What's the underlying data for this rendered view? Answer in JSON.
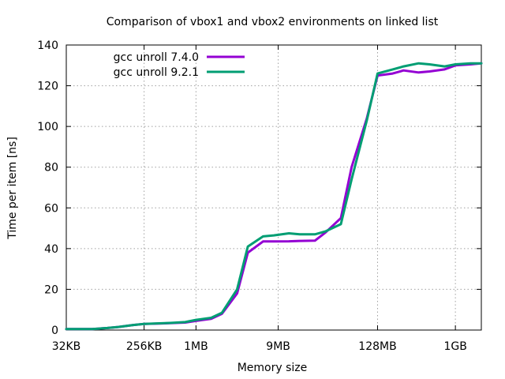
{
  "chart_data": {
    "type": "line",
    "title": "Comparison of vbox1 and vbox2 environments on linked list",
    "xlabel": "Memory size",
    "ylabel": "Time per item [ns]",
    "x_scale": "log2",
    "x_unit": "KB",
    "xlim": [
      32,
      2097152
    ],
    "ylim": [
      0,
      140
    ],
    "yticks": [
      0,
      20,
      40,
      60,
      80,
      100,
      120,
      140
    ],
    "xticks": [
      {
        "value": 32,
        "label": "32KB"
      },
      {
        "value": 256,
        "label": "256KB"
      },
      {
        "value": 1024,
        "label": "1MB"
      },
      {
        "value": 9216,
        "label": "9MB"
      },
      {
        "value": 131072,
        "label": "128MB"
      },
      {
        "value": 1048576,
        "label": "1GB"
      }
    ],
    "grid": true,
    "legend_position": "top-left",
    "x": [
      32,
      64,
      96,
      128,
      192,
      256,
      384,
      512,
      768,
      1024,
      1536,
      2048,
      3072,
      4096,
      6144,
      8192,
      12288,
      16384,
      24576,
      32768,
      49152,
      65536,
      98304,
      131072,
      196608,
      262144,
      393216,
      524288,
      786432,
      1048576,
      1572864,
      2097152
    ],
    "series": [
      {
        "name": "gcc unroll 7.4.0",
        "color": "#9400d3",
        "values": [
          0.5,
          0.5,
          1,
          1.5,
          2.5,
          3,
          3.2,
          3.4,
          3.7,
          4.5,
          5.5,
          8,
          18,
          38,
          43.5,
          43.5,
          43.6,
          43.8,
          43.9,
          48,
          55,
          80,
          104,
          125,
          126,
          127.5,
          126.5,
          127,
          128,
          130,
          130.5,
          131
        ]
      },
      {
        "name": "gcc unroll 9.2.1",
        "color": "#009e73",
        "values": [
          0.5,
          0.5,
          1,
          1.5,
          2.5,
          3,
          3.3,
          3.5,
          3.9,
          5,
          6,
          8.5,
          20,
          41,
          46,
          46.5,
          47.5,
          47,
          47,
          48.5,
          52,
          74,
          103,
          126,
          128,
          129.5,
          131,
          130.5,
          129.5,
          130.5,
          131,
          131
        ]
      }
    ]
  }
}
